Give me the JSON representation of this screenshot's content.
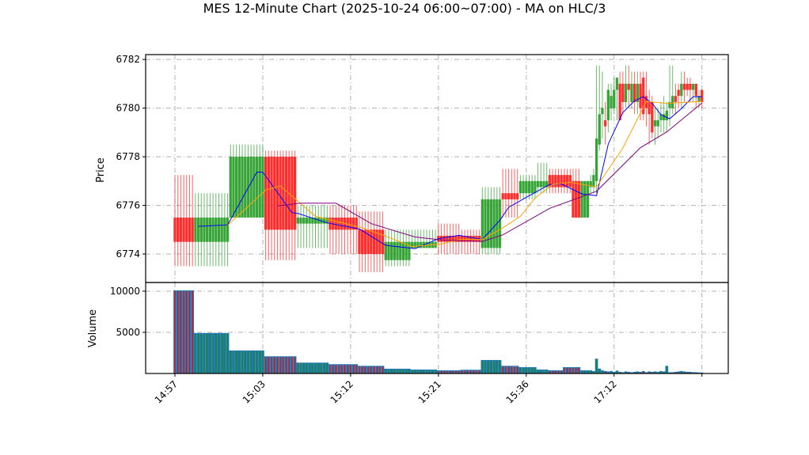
{
  "chart_data": {
    "type": "candlestick",
    "title": "MES 12-Minute Chart (2025-10-24 06:00~07:00) - MA on HLC/3",
    "price_panel": {
      "ylabel": "Price",
      "ylim": [
        6772.83,
        6782.2
      ],
      "yticks": [
        6774,
        6776,
        6778,
        6780,
        6782
      ],
      "grid": true
    },
    "volume_panel": {
      "ylabel": "Volume",
      "ylim": [
        0,
        11060
      ],
      "yticks": [
        5000,
        10000
      ],
      "grid": true
    },
    "xlim": [
      -10,
      189
    ],
    "xticks": [
      {
        "at": 0,
        "label": "14:57"
      },
      {
        "at": 30,
        "label": "15:03"
      },
      {
        "at": 60,
        "label": "15:12"
      },
      {
        "at": 90,
        "label": "15:21"
      },
      {
        "at": 120,
        "label": "15:36"
      },
      {
        "at": 150,
        "label": "17:12"
      },
      {
        "at": 180,
        "label": ""
      }
    ],
    "colors": {
      "up": "#2ca02c",
      "down": "#ff2222",
      "volume": "#1f77b4",
      "ma_fast": "#0000ff",
      "ma_mid": "#ffa500",
      "ma_slow": "#800080"
    },
    "candles": [
      {
        "n": 7,
        "o": 6775.5,
        "h": 6777.25,
        "l": 6773.5,
        "c": 6774.5,
        "v": 10100
      },
      {
        "n": 12,
        "o": 6774.5,
        "h": 6776.5,
        "l": 6773.5,
        "c": 6775.5,
        "v": 4920
      },
      {
        "n": 12,
        "o": 6775.5,
        "h": 6778.5,
        "l": 6775.5,
        "c": 6778.0,
        "v": 2800
      },
      {
        "n": 11,
        "o": 6778.0,
        "h": 6778.25,
        "l": 6773.75,
        "c": 6775.0,
        "v": 2090
      },
      {
        "n": 11,
        "o": 6775.25,
        "h": 6776.0,
        "l": 6774.25,
        "c": 6775.5,
        "v": 1320
      },
      {
        "n": 10,
        "o": 6775.5,
        "h": 6776.0,
        "l": 6774.0,
        "c": 6775.0,
        "v": 1130
      },
      {
        "n": 9,
        "o": 6775.0,
        "h": 6775.75,
        "l": 6773.25,
        "c": 6774.0,
        "v": 930
      },
      {
        "n": 9,
        "o": 6773.75,
        "h": 6775.0,
        "l": 6773.5,
        "c": 6774.5,
        "v": 580
      },
      {
        "n": 9,
        "o": 6774.25,
        "h": 6775.0,
        "l": 6774.25,
        "c": 6774.5,
        "v": 480
      },
      {
        "n": 8,
        "o": 6774.75,
        "h": 6775.25,
        "l": 6774.0,
        "c": 6774.5,
        "v": 390
      },
      {
        "n": 7,
        "o": 6774.75,
        "h": 6775.0,
        "l": 6774.0,
        "c": 6774.5,
        "v": 450
      },
      {
        "n": 7,
        "o": 6774.25,
        "h": 6776.75,
        "l": 6774.0,
        "c": 6776.25,
        "v": 1640
      },
      {
        "n": 6,
        "o": 6776.5,
        "h": 6777.5,
        "l": 6775.5,
        "c": 6776.25,
        "v": 930
      },
      {
        "n": 6,
        "o": 6776.5,
        "h": 6777.25,
        "l": 6776.25,
        "c": 6777.0,
        "v": 770
      },
      {
        "n": 4,
        "o": 6776.75,
        "h": 6777.75,
        "l": 6776.5,
        "c": 6777.0,
        "v": 480
      },
      {
        "n": 5,
        "o": 6777.25,
        "h": 6777.5,
        "l": 6776.5,
        "c": 6776.75,
        "v": 390
      },
      {
        "n": 3,
        "o": 6777.25,
        "h": 6777.5,
        "l": 6776.5,
        "c": 6776.75,
        "v": 770
      },
      {
        "n": 3,
        "o": 6777.0,
        "h": 6777.5,
        "l": 6775.5,
        "c": 6775.5,
        "v": 770
      },
      {
        "n": 3,
        "o": 6775.5,
        "h": 6777.0,
        "l": 6775.5,
        "c": 6777.0,
        "v": 390
      },
      {
        "o": 6776.75,
        "h": 6777.25,
        "l": 6776.5,
        "c": 6777.0,
        "v": 390
      },
      {
        "o": 6776.75,
        "h": 6777.5,
        "l": 6776.5,
        "c": 6777.25,
        "v": 300
      },
      {
        "o": 6777.0,
        "h": 6781.75,
        "l": 6776.5,
        "c": 6778.75,
        "v": 1800
      },
      {
        "o": 6778.5,
        "h": 6781.75,
        "l": 6778.25,
        "c": 6779.75,
        "v": 600
      },
      {
        "o": 6779.75,
        "h": 6781.5,
        "l": 6778.75,
        "c": 6780.0,
        "v": 400
      },
      {
        "o": 6779.5,
        "h": 6780.25,
        "l": 6778.5,
        "c": 6779.25,
        "v": 300
      },
      {
        "o": 6779.5,
        "h": 6781.0,
        "l": 6779.0,
        "c": 6780.75,
        "v": 250
      },
      {
        "o": 6780.0,
        "h": 6781.0,
        "l": 6779.5,
        "c": 6780.5,
        "v": 300
      },
      {
        "o": 6780.0,
        "h": 6781.25,
        "l": 6779.75,
        "c": 6780.75,
        "v": 200
      },
      {
        "o": 6780.75,
        "h": 6781.25,
        "l": 6779.5,
        "c": 6781.25,
        "v": 350
      },
      {
        "o": 6781.0,
        "h": 6781.5,
        "l": 6779.5,
        "c": 6779.5,
        "v": 200
      },
      {
        "o": 6781.0,
        "h": 6781.5,
        "l": 6779.75,
        "c": 6780.25,
        "v": 150
      },
      {
        "o": 6780.25,
        "h": 6781.75,
        "l": 6780.0,
        "c": 6781.0,
        "v": 250
      },
      {
        "o": 6781.0,
        "h": 6781.75,
        "l": 6780.0,
        "c": 6780.75,
        "v": 200
      },
      {
        "o": 6780.25,
        "h": 6781.5,
        "l": 6780.0,
        "c": 6781.0,
        "v": 150
      },
      {
        "o": 6781.0,
        "h": 6781.5,
        "l": 6779.75,
        "c": 6780.25,
        "v": 200
      },
      {
        "o": 6780.25,
        "h": 6781.5,
        "l": 6779.75,
        "c": 6781.0,
        "v": 250
      },
      {
        "o": 6781.0,
        "h": 6781.5,
        "l": 6779.5,
        "c": 6780.0,
        "v": 200
      },
      {
        "o": 6781.25,
        "h": 6781.5,
        "l": 6779.5,
        "c": 6779.75,
        "v": 300
      },
      {
        "o": 6780.5,
        "h": 6781.5,
        "l": 6779.25,
        "c": 6780.0,
        "v": 150
      },
      {
        "o": 6780.25,
        "h": 6780.75,
        "l": 6778.5,
        "c": 6779.75,
        "v": 250
      },
      {
        "o": 6780.25,
        "h": 6780.5,
        "l": 6778.75,
        "c": 6779.0,
        "v": 200
      },
      {
        "o": 6779.25,
        "h": 6780.0,
        "l": 6778.5,
        "c": 6779.5,
        "v": 250
      },
      {
        "o": 6779.25,
        "h": 6780.0,
        "l": 6778.75,
        "c": 6779.5,
        "v": 200
      },
      {
        "o": 6779.5,
        "h": 6780.25,
        "l": 6779.0,
        "c": 6779.75,
        "v": 300
      },
      {
        "o": 6779.5,
        "h": 6780.5,
        "l": 6779.0,
        "c": 6779.75,
        "v": 250
      },
      {
        "o": 6779.5,
        "h": 6780.25,
        "l": 6779.0,
        "c": 6779.9,
        "v": 930
      },
      {
        "o": 6780.0,
        "h": 6781.75,
        "l": 6779.25,
        "c": 6780.25,
        "v": 150
      },
      {
        "o": 6780.0,
        "h": 6781.75,
        "l": 6779.75,
        "c": 6780.5,
        "v": 150
      },
      {
        "o": 6780.5,
        "h": 6781.0,
        "l": 6779.75,
        "c": 6780.25,
        "v": 200
      },
      {
        "o": 6780.75,
        "h": 6781.0,
        "l": 6780.0,
        "c": 6780.5,
        "v": 250
      },
      {
        "o": 6780.5,
        "h": 6781.5,
        "l": 6780.0,
        "c": 6781.0,
        "v": 300
      },
      {
        "o": 6781.0,
        "h": 6781.5,
        "l": 6780.25,
        "c": 6780.75,
        "v": 250
      },
      {
        "o": 6781.0,
        "h": 6781.25,
        "l": 6780.5,
        "c": 6780.75,
        "v": 200
      },
      {
        "o": 6781.0,
        "h": 6781.25,
        "l": 6780.25,
        "c": 6780.75,
        "v": 200
      },
      {
        "o": 6780.75,
        "h": 6781.0,
        "l": 6780.25,
        "c": 6781.0,
        "v": 150
      },
      {
        "o": 6781.0,
        "h": 6781.0,
        "l": 6780.0,
        "c": 6780.5,
        "v": 150
      },
      {
        "o": 6780.25,
        "h": 6780.75,
        "l": 6780.0,
        "c": 6780.5,
        "v": 120
      },
      {
        "o": 6780.75,
        "h": 6780.75,
        "l": 6780.0,
        "c": 6780.25,
        "v": 100
      }
    ],
    "moving_averages": [
      {
        "key": "ma_fast",
        "points": [
          [
            8,
            6775.14
          ],
          [
            18,
            6775.2
          ],
          [
            28,
            6777.37
          ],
          [
            30,
            6777.37
          ],
          [
            40,
            6775.7
          ],
          [
            42,
            6775.67
          ],
          [
            52,
            6775.28
          ],
          [
            63,
            6775.03
          ],
          [
            72,
            6774.36
          ],
          [
            82,
            6774.22
          ],
          [
            90,
            6774.63
          ],
          [
            97,
            6774.77
          ],
          [
            105,
            6774.6
          ],
          [
            111,
            6775.39
          ],
          [
            114,
            6775.92
          ],
          [
            121,
            6776.4
          ],
          [
            128,
            6776.86
          ],
          [
            132,
            6776.88
          ],
          [
            139,
            6776.47
          ],
          [
            144,
            6776.4
          ],
          [
            148,
            6778.52
          ],
          [
            153,
            6779.82
          ],
          [
            157,
            6780.3
          ],
          [
            160,
            6780.47
          ],
          [
            163,
            6780.2
          ],
          [
            166,
            6779.73
          ],
          [
            169,
            6779.56
          ],
          [
            173,
            6779.98
          ],
          [
            177,
            6780.47
          ],
          [
            180,
            6780.47
          ]
        ]
      },
      {
        "key": "ma_mid",
        "points": [
          [
            18,
            6775.18
          ],
          [
            31,
            6776.63
          ],
          [
            36,
            6776.8
          ],
          [
            48,
            6775.55
          ],
          [
            63,
            6775.11
          ],
          [
            72,
            6774.74
          ],
          [
            81,
            6774.3
          ],
          [
            91,
            6774.41
          ],
          [
            97,
            6774.6
          ],
          [
            105,
            6774.6
          ],
          [
            111,
            6775.0
          ],
          [
            118,
            6775.55
          ],
          [
            123,
            6776.3
          ],
          [
            129,
            6776.86
          ],
          [
            135,
            6776.95
          ],
          [
            144,
            6776.76
          ],
          [
            153,
            6778.36
          ],
          [
            161,
            6780.27
          ],
          [
            168,
            6780.2
          ],
          [
            180,
            6780.27
          ]
        ]
      },
      {
        "key": "ma_slow",
        "points": [
          [
            35,
            6775.98
          ],
          [
            43,
            6776.09
          ],
          [
            55,
            6776.09
          ],
          [
            67,
            6775.25
          ],
          [
            82,
            6774.7
          ],
          [
            91,
            6774.58
          ],
          [
            105,
            6774.52
          ],
          [
            112,
            6774.79
          ],
          [
            128,
            6775.88
          ],
          [
            144,
            6776.58
          ],
          [
            159,
            6778.37
          ],
          [
            168,
            6779.02
          ],
          [
            180,
            6780.21
          ]
        ]
      }
    ]
  }
}
